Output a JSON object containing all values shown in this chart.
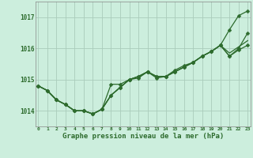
{
  "title": "Graphe pression niveau de la mer (hPa)",
  "hours": [
    0,
    1,
    2,
    3,
    4,
    5,
    6,
    7,
    8,
    9,
    10,
    11,
    12,
    13,
    14,
    15,
    16,
    17,
    18,
    19,
    20,
    21,
    22,
    23
  ],
  "ylim": [
    1013.5,
    1017.5
  ],
  "yticks": [
    1014,
    1015,
    1016,
    1017
  ],
  "background_color": "#cceedd",
  "grid_color": "#aaccbb",
  "line_color": "#2d6b2d",
  "lines": [
    [
      1014.8,
      1014.65,
      1014.35,
      1014.2,
      1014.0,
      1014.0,
      1013.9,
      1014.05,
      1014.85,
      1014.85,
      1015.0,
      1015.05,
      1015.25,
      1015.05,
      1015.1,
      1015.3,
      1015.45,
      1015.55,
      1015.75,
      1015.9,
      1016.1,
      1016.6,
      1017.05,
      1017.2
    ],
    [
      1014.8,
      1014.65,
      1014.35,
      1014.2,
      1014.0,
      1014.0,
      1013.9,
      1014.05,
      1014.5,
      1014.75,
      1015.0,
      1015.1,
      1015.25,
      1015.1,
      1015.1,
      1015.25,
      1015.4,
      1015.55,
      1015.75,
      1015.9,
      1016.1,
      1015.75,
      1015.95,
      1016.1
    ],
    [
      1014.8,
      1014.65,
      1014.35,
      1014.2,
      1014.0,
      1014.0,
      1013.9,
      1014.05,
      1014.5,
      1014.75,
      1015.0,
      1015.1,
      1015.25,
      1015.1,
      1015.1,
      1015.25,
      1015.4,
      1015.55,
      1015.75,
      1015.9,
      1016.1,
      1015.85,
      1016.05,
      1016.25
    ],
    [
      1014.8,
      1014.65,
      1014.35,
      1014.2,
      1014.0,
      1014.0,
      1013.9,
      1014.05,
      1014.5,
      1014.75,
      1015.0,
      1015.1,
      1015.25,
      1015.1,
      1015.1,
      1015.25,
      1015.4,
      1015.55,
      1015.75,
      1015.9,
      1016.1,
      1015.75,
      1016.0,
      1016.5
    ]
  ],
  "marker_lines": [
    0,
    1,
    3
  ],
  "markersize": 2.5,
  "linewidth": 0.9
}
